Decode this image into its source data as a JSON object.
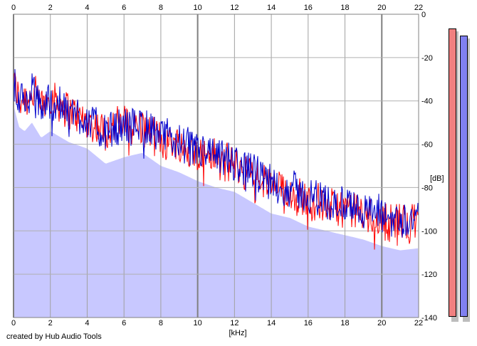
{
  "chart_data": {
    "type": "line",
    "title": "",
    "xlabel": "[kHz]",
    "ylabel": "[dB]",
    "xlim": [
      0,
      22
    ],
    "ylim": [
      -140,
      0
    ],
    "x_ticks": [
      0,
      2,
      4,
      6,
      8,
      10,
      12,
      14,
      16,
      18,
      20,
      22
    ],
    "y_ticks": [
      -20,
      -40,
      -60,
      -80,
      -100,
      -120,
      -140
    ],
    "y_top_tick": 0,
    "grid": true,
    "fill_color": "#c8c8ff",
    "series": [
      {
        "color": "#ff0000",
        "x": [
          0,
          0.3,
          0.6,
          1,
          1.5,
          2,
          3,
          4,
          5,
          6,
          7,
          8,
          9,
          10,
          11,
          12,
          13,
          14,
          15,
          16,
          17,
          18,
          19,
          20,
          21,
          22
        ],
        "y": [
          -30,
          -40,
          -38,
          -35,
          -42,
          -38,
          -44,
          -50,
          -54,
          -50,
          -52,
          -58,
          -60,
          -64,
          -66,
          -70,
          -74,
          -80,
          -82,
          -86,
          -88,
          -90,
          -92,
          -96,
          -96,
          -95
        ]
      },
      {
        "color": "#0000cc",
        "x": [
          0,
          0.3,
          0.6,
          1,
          1.5,
          2,
          3,
          4,
          5,
          6,
          7,
          8,
          9,
          10,
          11,
          12,
          13,
          14,
          15,
          16,
          17,
          18,
          19,
          20,
          21,
          22
        ],
        "y": [
          -28,
          -38,
          -40,
          -36,
          -43,
          -40,
          -45,
          -48,
          -55,
          -52,
          -50,
          -56,
          -59,
          -63,
          -66,
          -68,
          -73,
          -78,
          -80,
          -84,
          -86,
          -88,
          -90,
          -93,
          -95,
          -94
        ]
      }
    ]
  },
  "meters": {
    "left_color": "#f08080",
    "right_color": "#8080f0",
    "left_level": 0.97,
    "right_level": 0.95
  },
  "footer": {
    "credit": "created by Hub Audio Tools"
  }
}
